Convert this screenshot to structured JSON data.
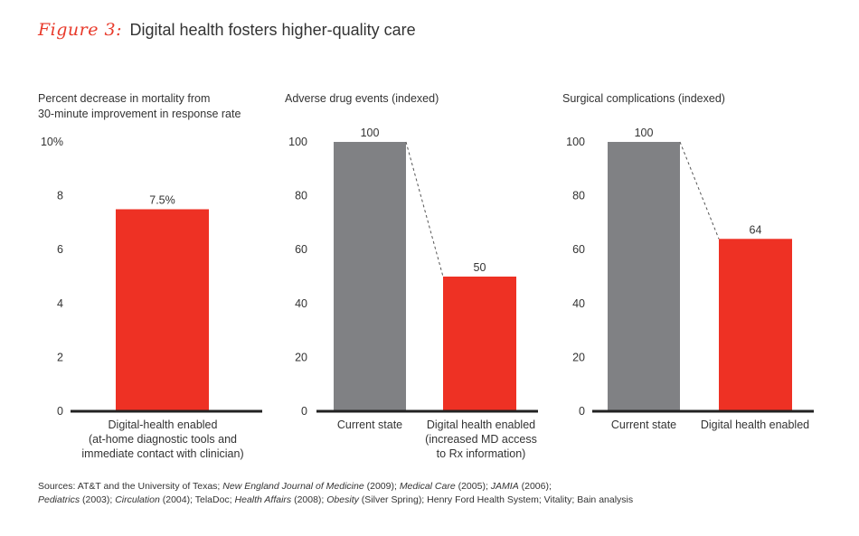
{
  "figure": {
    "label": "Figure 3:",
    "title": "Digital health fosters higher-quality care"
  },
  "colors": {
    "accent_red": "#ee3124",
    "bar_gray": "#808184",
    "axis": "#222222"
  },
  "chart_data": [
    {
      "type": "bar",
      "title": "Percent decrease in mortality from 30-minute improvement in response rate",
      "title_lines": [
        "Percent decrease in mortality from",
        "30-minute improvement in response rate"
      ],
      "ylim": [
        0,
        10
      ],
      "yticks": [
        "0",
        "2",
        "4",
        "6",
        "8",
        "10%"
      ],
      "ytick_values": [
        0,
        2,
        4,
        6,
        8,
        10
      ],
      "categories": [
        "Digital-health enabled (at-home diagnostic tools and immediate contact with clinician)"
      ],
      "category_lines": [
        [
          "Digital-health enabled",
          "(at-home diagnostic tools and",
          "immediate contact with clinician)"
        ]
      ],
      "values": [
        7.5
      ],
      "value_labels": [
        "7.5%"
      ],
      "bar_colors": [
        "#ee3124"
      ],
      "connector": false
    },
    {
      "type": "bar",
      "title": "Adverse drug events (indexed)",
      "title_lines": [
        "Adverse drug events (indexed)"
      ],
      "ylim": [
        0,
        100
      ],
      "yticks": [
        "0",
        "20",
        "40",
        "60",
        "80",
        "100"
      ],
      "ytick_values": [
        0,
        20,
        40,
        60,
        80,
        100
      ],
      "categories": [
        "Current state",
        "Digital health enabled (increased MD access to Rx information)"
      ],
      "category_lines": [
        [
          "Current state"
        ],
        [
          "Digital health enabled",
          "(increased MD access",
          "to Rx information)"
        ]
      ],
      "values": [
        100,
        50
      ],
      "value_labels": [
        "100",
        "50"
      ],
      "bar_colors": [
        "#808184",
        "#ee3124"
      ],
      "connector": true
    },
    {
      "type": "bar",
      "title": "Surgical complications (indexed)",
      "title_lines": [
        "Surgical complications (indexed)"
      ],
      "ylim": [
        0,
        100
      ],
      "yticks": [
        "0",
        "20",
        "40",
        "60",
        "80",
        "100"
      ],
      "ytick_values": [
        0,
        20,
        40,
        60,
        80,
        100
      ],
      "categories": [
        "Current state",
        "Digital health enabled"
      ],
      "category_lines": [
        [
          "Current state"
        ],
        [
          "Digital health enabled"
        ]
      ],
      "values": [
        100,
        64
      ],
      "value_labels": [
        "100",
        "64"
      ],
      "bar_colors": [
        "#808184",
        "#ee3124"
      ],
      "connector": true
    }
  ],
  "sources": {
    "line1": [
      {
        "text": "Sources: AT&T and the University of Texas; ",
        "italic": false
      },
      {
        "text": "New England Journal of Medicine",
        "italic": true
      },
      {
        "text": " (2009); ",
        "italic": false
      },
      {
        "text": "Medical Care",
        "italic": true
      },
      {
        "text": " (2005); ",
        "italic": false
      },
      {
        "text": "JAMIA",
        "italic": true
      },
      {
        "text": " (2006);",
        "italic": false
      }
    ],
    "line2": [
      {
        "text": "Pediatrics",
        "italic": true
      },
      {
        "text": " (2003); ",
        "italic": false
      },
      {
        "text": "Circulation",
        "italic": true
      },
      {
        "text": " (2004); TelaDoc; ",
        "italic": false
      },
      {
        "text": "Health Affairs",
        "italic": true
      },
      {
        "text": " (2008); ",
        "italic": false
      },
      {
        "text": "Obesity",
        "italic": true
      },
      {
        "text": " (Silver Spring); Henry Ford Health System; Vitality; Bain analysis",
        "italic": false
      }
    ]
  }
}
